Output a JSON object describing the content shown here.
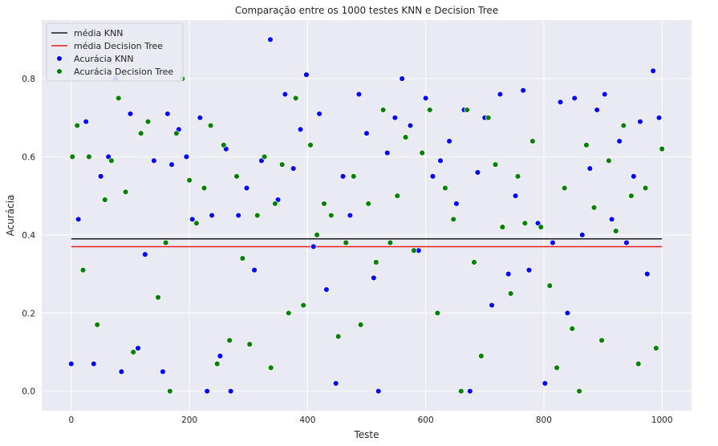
{
  "chart_data": {
    "type": "scatter",
    "title": "Comparação entre os 1000 testes KNN e Decision Tree",
    "xlabel": "Teste",
    "ylabel": "Acurácia",
    "xlim": [
      -50,
      1050
    ],
    "ylim": [
      -0.05,
      0.95
    ],
    "xticks": [
      0,
      200,
      400,
      600,
      800,
      1000
    ],
    "xtick_labels": [
      "0",
      "200",
      "400",
      "600",
      "800",
      "1000"
    ],
    "yticks": [
      0.0,
      0.2,
      0.4,
      0.6,
      0.8
    ],
    "ytick_labels": [
      "0.0",
      "0.2",
      "0.4",
      "0.6",
      "0.8"
    ],
    "grid": true,
    "legend_position": "top-left",
    "lines": [
      {
        "name": "média KNN",
        "y": 0.39,
        "color": "#1a1a1a"
      },
      {
        "name": "média Decision Tree",
        "y": 0.37,
        "color": "#e8211a"
      }
    ],
    "series": [
      {
        "name": "Acurácia KNN",
        "color": "#0000ff",
        "x": [
          0,
          12,
          25,
          38,
          50,
          63,
          75,
          85,
          100,
          113,
          125,
          140,
          155,
          163,
          170,
          182,
          195,
          205,
          218,
          230,
          238,
          252,
          262,
          270,
          283,
          297,
          310,
          322,
          337,
          350,
          362,
          376,
          388,
          398,
          410,
          420,
          432,
          448,
          460,
          472,
          487,
          500,
          512,
          520,
          535,
          548,
          560,
          574,
          588,
          600,
          612,
          625,
          640,
          652,
          665,
          675,
          688,
          700,
          712,
          726,
          740,
          752,
          765,
          775,
          790,
          802,
          815,
          828,
          840,
          852,
          865,
          878,
          890,
          903,
          915,
          928,
          940,
          952,
          963,
          975,
          985,
          995
        ],
        "y": [
          0.07,
          0.44,
          0.69,
          0.07,
          0.55,
          0.6,
          0.8,
          0.05,
          0.71,
          0.11,
          0.35,
          0.59,
          0.05,
          0.71,
          0.58,
          0.67,
          0.6,
          0.44,
          0.7,
          0.0,
          0.45,
          0.09,
          0.62,
          0.0,
          0.45,
          0.52,
          0.31,
          0.59,
          0.9,
          0.49,
          0.76,
          0.57,
          0.67,
          0.81,
          0.37,
          0.71,
          0.26,
          0.02,
          0.55,
          0.45,
          0.76,
          0.66,
          0.29,
          0.0,
          0.61,
          0.7,
          0.8,
          0.68,
          0.36,
          0.75,
          0.55,
          0.59,
          0.64,
          0.48,
          0.72,
          0.0,
          0.56,
          0.7,
          0.22,
          0.76,
          0.3,
          0.5,
          0.77,
          0.31,
          0.43,
          0.02,
          0.38,
          0.74,
          0.2,
          0.75,
          0.4,
          0.57,
          0.72,
          0.76,
          0.44,
          0.64,
          0.38,
          0.55,
          0.69,
          0.3,
          0.82,
          0.7
        ]
      },
      {
        "name": "Acurácia Decision Tree",
        "color": "#008000",
        "x": [
          2,
          10,
          20,
          30,
          44,
          57,
          68,
          80,
          92,
          105,
          118,
          130,
          147,
          160,
          167,
          178,
          188,
          200,
          212,
          225,
          236,
          247,
          258,
          268,
          280,
          290,
          302,
          315,
          327,
          338,
          345,
          357,
          368,
          380,
          393,
          405,
          416,
          428,
          440,
          452,
          465,
          478,
          490,
          503,
          516,
          528,
          540,
          552,
          566,
          580,
          594,
          607,
          620,
          633,
          647,
          660,
          670,
          682,
          694,
          706,
          718,
          730,
          744,
          756,
          768,
          781,
          795,
          810,
          822,
          835,
          848,
          860,
          872,
          885,
          898,
          910,
          922,
          935,
          948,
          960,
          972,
          990,
          1000
        ],
        "y": [
          0.6,
          0.68,
          0.31,
          0.6,
          0.17,
          0.49,
          0.59,
          0.75,
          0.51,
          0.1,
          0.66,
          0.69,
          0.24,
          0.38,
          0.0,
          0.66,
          0.8,
          0.54,
          0.43,
          0.52,
          0.68,
          0.07,
          0.63,
          0.13,
          0.55,
          0.34,
          0.12,
          0.45,
          0.6,
          0.06,
          0.48,
          0.58,
          0.2,
          0.75,
          0.22,
          0.63,
          0.4,
          0.48,
          0.45,
          0.14,
          0.38,
          0.55,
          0.17,
          0.48,
          0.33,
          0.72,
          0.38,
          0.5,
          0.65,
          0.36,
          0.61,
          0.72,
          0.2,
          0.52,
          0.44,
          0.0,
          0.72,
          0.33,
          0.09,
          0.7,
          0.58,
          0.42,
          0.25,
          0.55,
          0.43,
          0.64,
          0.42,
          0.27,
          0.06,
          0.52,
          0.16,
          0.0,
          0.63,
          0.47,
          0.13,
          0.59,
          0.41,
          0.68,
          0.5,
          0.07,
          0.52,
          0.11,
          0.62
        ]
      }
    ]
  }
}
